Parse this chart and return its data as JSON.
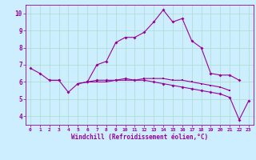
{
  "xlabel": "Windchill (Refroidissement éolien,°C)",
  "background_color": "#cceeff",
  "grid_color": "#aaddcc",
  "line_color": "#990099",
  "x_values": [
    0,
    1,
    2,
    3,
    4,
    5,
    6,
    7,
    8,
    9,
    10,
    11,
    12,
    13,
    14,
    15,
    16,
    17,
    18,
    19,
    20,
    21,
    22,
    23
  ],
  "line1": [
    6.8,
    6.5,
    6.1,
    6.1,
    5.4,
    5.9,
    6.0,
    7.0,
    7.2,
    8.3,
    8.6,
    8.6,
    8.9,
    9.5,
    10.2,
    9.5,
    9.7,
    8.4,
    8.0,
    6.5,
    6.4,
    6.4,
    6.1,
    null
  ],
  "line2": [
    null,
    null,
    6.1,
    6.1,
    null,
    5.9,
    6.0,
    6.0,
    6.0,
    6.1,
    6.1,
    6.1,
    6.2,
    6.2,
    6.2,
    6.1,
    6.1,
    6.0,
    5.9,
    5.8,
    5.7,
    5.5,
    null,
    null
  ],
  "line3": [
    null,
    null,
    null,
    null,
    null,
    null,
    6.0,
    6.1,
    6.1,
    6.1,
    6.2,
    6.1,
    6.1,
    6.0,
    5.9,
    5.8,
    5.7,
    5.6,
    5.5,
    5.4,
    5.3,
    5.1,
    3.8,
    4.9
  ],
  "ylim": [
    3.5,
    10.5
  ],
  "xlim": [
    -0.5,
    23.5
  ],
  "yticks": [
    4,
    5,
    6,
    7,
    8,
    9,
    10
  ],
  "xtick_fontsize": 4.5,
  "ytick_fontsize": 5.5,
  "xlabel_fontsize": 5.5
}
